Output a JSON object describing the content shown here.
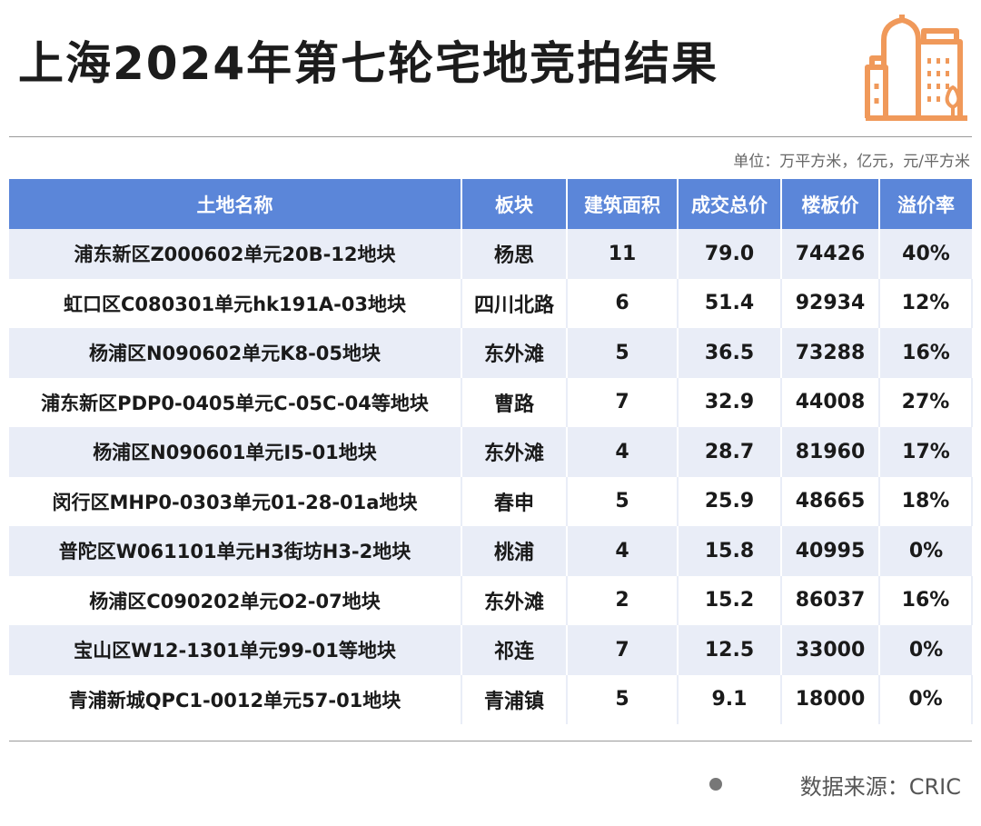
{
  "title": "上海2024年第七轮宅地竞拍结果",
  "unit_note": "单位：万平方米，亿元，元/平方米",
  "accent_color": "#5b86d9",
  "logo_icon": "city-buildings-icon",
  "table": {
    "headers": [
      "土地名称",
      "板块",
      "建筑面积",
      "成交总价",
      "楼板价",
      "溢价率"
    ],
    "rows": [
      [
        "浦东新区Z000602单元20B-12地块",
        "杨思",
        "11",
        "79.0",
        "74426",
        "40%"
      ],
      [
        "虹口区C080301单元hk191A-03地块",
        "四川北路",
        "6",
        "51.4",
        "92934",
        "12%"
      ],
      [
        "杨浦区N090602单元K8-05地块",
        "东外滩",
        "5",
        "36.5",
        "73288",
        "16%"
      ],
      [
        "浦东新区PDP0-0405单元C-05C-04等地块",
        "曹路",
        "7",
        "32.9",
        "44008",
        "27%"
      ],
      [
        "杨浦区N090601单元I5-01地块",
        "东外滩",
        "4",
        "28.7",
        "81960",
        "17%"
      ],
      [
        "闵行区MHP0-0303单元01-28-01a地块",
        "春申",
        "5",
        "25.9",
        "48665",
        "18%"
      ],
      [
        "普陀区W061101单元H3街坊H3-2地块",
        "桃浦",
        "4",
        "15.8",
        "40995",
        "0%"
      ],
      [
        "杨浦区C090202单元O2-07地块",
        "东外滩",
        "2",
        "15.2",
        "86037",
        "16%"
      ],
      [
        "宝山区W12-1301单元99-01等地块",
        "祁连",
        "7",
        "12.5",
        "33000",
        "0%"
      ],
      [
        "青浦新城QPC1-0012单元57-01地块",
        "青浦镇",
        "5",
        "9.1",
        "18000",
        "0%"
      ]
    ]
  },
  "footer": "数据来源：CRIC"
}
